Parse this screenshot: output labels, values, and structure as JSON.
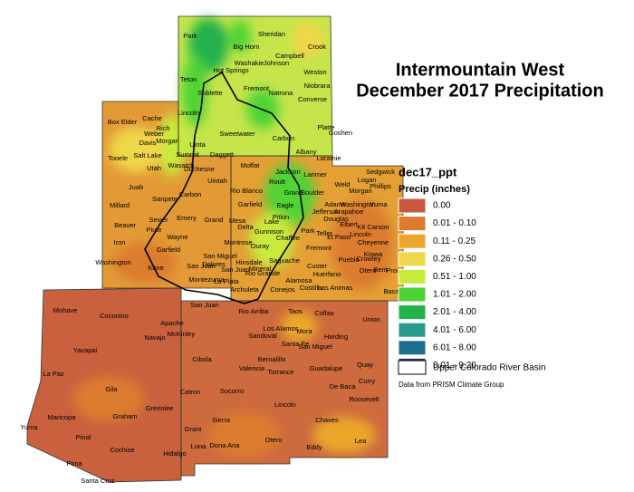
{
  "title_line1": "Intermountain West",
  "title_line2": "December 2017 Precipitation",
  "legend": {
    "layer": "dec17_ppt",
    "heading": "Precip (inches)",
    "classes": [
      {
        "label": "0.00",
        "color": "#c65a3e"
      },
      {
        "label": "0.01 - 0.10",
        "color": "#dc7b2e"
      },
      {
        "label": "0.11 - 0.25",
        "color": "#eaa72c"
      },
      {
        "label": "0.26 - 0.50",
        "color": "#f0d64a"
      },
      {
        "label": "0.51 - 1.00",
        "color": "#c8ea3c"
      },
      {
        "label": "1.01 - 2.00",
        "color": "#4fd334"
      },
      {
        "label": "2.01 - 4.00",
        "color": "#23b14c"
      },
      {
        "label": "4.01 - 6.00",
        "color": "#269b8b"
      },
      {
        "label": "6.01 - 8.00",
        "color": "#1e6e8f"
      },
      {
        "label": "8.01 - 9.20",
        "color": "#1b2f7a"
      }
    ],
    "basin": "Upper Colorado River Basin"
  },
  "credit": "Data from PRISM Climate Group",
  "counties": [
    "Park",
    "Sheridan",
    "Big Horn",
    "Crook",
    "Teton",
    "Washakie",
    "Johnson",
    "Campbell",
    "Hot Springs",
    "Weston",
    "Sublette",
    "Fremont",
    "Natrona",
    "Converse",
    "Niobrara",
    "Lincoln",
    "Sweetwater",
    "Carbon",
    "Platte",
    "Goshen",
    "Uinta",
    "Albany",
    "Laramie",
    "Box Elder",
    "Cache",
    "Rich",
    "Weber",
    "Davis",
    "Morgan",
    "Salt Lake",
    "Summit",
    "Daggett",
    "Tooele",
    "Wasatch",
    "Utah",
    "Duchesne",
    "Uintah",
    "Juab",
    "Carbon",
    "Sanpete",
    "Millard",
    "Sevier",
    "Emery",
    "Grand",
    "Beaver",
    "Piute",
    "Wayne",
    "Iron",
    "Garfield",
    "Washington",
    "Kane",
    "San Juan",
    "Moffat",
    "Jackson",
    "Larimer",
    "Sedgwick",
    "Logan",
    "Phillips",
    "Rio Blanco",
    "Routt",
    "Weld",
    "Morgan",
    "Grand",
    "Boulder",
    "Garfield",
    "Eagle",
    "Adams",
    "Washington",
    "Yuma",
    "Jefferson",
    "Arapahoe",
    "Mesa",
    "Pitkin",
    "Douglas",
    "Elbert",
    "Kit Carson",
    "Delta",
    "Gunnison",
    "Lake",
    "Chaffee",
    "Park",
    "Teller",
    "El Paso",
    "Lincoln",
    "Cheyenne",
    "Montrose",
    "Ouray",
    "Fremont",
    "San Miguel",
    "Hinsdale",
    "Saguache",
    "Pueblo",
    "Crowley",
    "Kiowa",
    "Dolores",
    "San Juan",
    "Mineral",
    "Custer",
    "Otero",
    "Bent",
    "Prowers",
    "Montezuma",
    "La Plata",
    "Rio Grande",
    "Alamosa",
    "Huerfano",
    "Archuleta",
    "Conejos",
    "Costilla",
    "Las Animas",
    "Baca",
    "San Juan",
    "Rio Arriba",
    "Taos",
    "Colfax",
    "Union",
    "McKinley",
    "Sandoval",
    "Los Alamos",
    "Mora",
    "Harding",
    "Santa Fe",
    "San Miguel",
    "Cibola",
    "Bernalillo",
    "Valencia",
    "Torrance",
    "Guadalupe",
    "Quay",
    "Catron",
    "Socorro",
    "Lincoln",
    "De Baca",
    "Curry",
    "Roosevelt",
    "Grant",
    "Sierra",
    "Chaves",
    "Otero",
    "Luna",
    "Dona Ana",
    "Eddy",
    "Lea",
    "Hidalgo",
    "Apache",
    "Mohave",
    "Coconino",
    "Navajo",
    "Yavapai",
    "La Paz",
    "Maricopa",
    "Yuma",
    "Gila",
    "Greenlee",
    "Graham",
    "Pinal",
    "Pima",
    "Cochise",
    "Santa Cruz"
  ]
}
